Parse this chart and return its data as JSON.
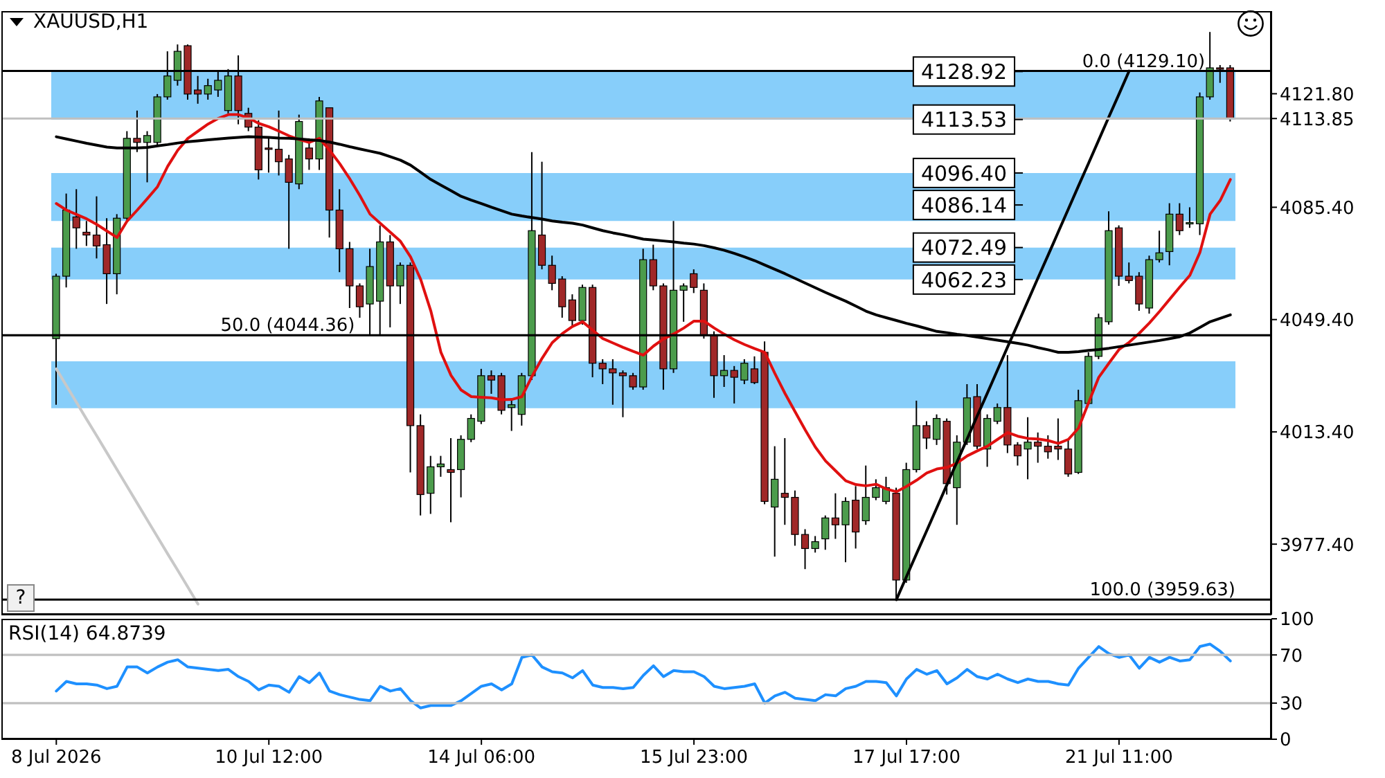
{
  "chart_data": [
    {
      "type": "candlestick",
      "title": "XAUUSD,H1",
      "categories": [
        null,
        null,
        null,
        null,
        null,
        null,
        null,
        null,
        null,
        null,
        null,
        null,
        null,
        null,
        null,
        null,
        null,
        null,
        null,
        null,
        null,
        null,
        null,
        null,
        null,
        null,
        null,
        null,
        null,
        null,
        null,
        null,
        null,
        null,
        null,
        null,
        null,
        null,
        null,
        null,
        null,
        null,
        null,
        null,
        null,
        null,
        null,
        null,
        null,
        null,
        null,
        null,
        null,
        null,
        null,
        null,
        null,
        null,
        null,
        null,
        null,
        null,
        null,
        null,
        null,
        null,
        null,
        null,
        null,
        null,
        null,
        null,
        null,
        null,
        null,
        null,
        null,
        null,
        null,
        null,
        null,
        null,
        null,
        null,
        null,
        null,
        null,
        null,
        null,
        null,
        null,
        null,
        null,
        null,
        null,
        null,
        null,
        null,
        null,
        null,
        null,
        null,
        null,
        null,
        null,
        null,
        null,
        null,
        null,
        null,
        null,
        null,
        null,
        null,
        null,
        null,
        null
      ],
      "ohlc": [
        [
          4043.3,
          4064.1,
          4022.1,
          4063.3
        ],
        [
          4063.3,
          4089.8,
          4059.7,
          4084.5
        ],
        [
          4082.3,
          4091.2,
          4072.1,
          4078.8
        ],
        [
          4077.4,
          4081.0,
          4073.0,
          4076.5
        ],
        [
          4076.5,
          4088.9,
          4069.0,
          4073.0
        ],
        [
          4073.4,
          4081.9,
          4054.4,
          4064.1
        ],
        [
          4064.1,
          4083.2,
          4057.5,
          4081.9
        ],
        [
          4081.9,
          4109.8,
          4081.0,
          4107.5
        ],
        [
          4107.5,
          4116.4,
          4103.1,
          4106.2
        ],
        [
          4106.2,
          4109.8,
          4093.4,
          4108.4
        ],
        [
          4106.2,
          4121.7,
          4105.3,
          4120.8
        ],
        [
          4120.8,
          4135.4,
          4119.9,
          4127.5
        ],
        [
          4126.1,
          4137.6,
          4124.4,
          4135.4
        ],
        [
          4137.2,
          4137.6,
          4119.9,
          4121.7
        ],
        [
          4123.0,
          4127.5,
          4118.6,
          4121.7
        ],
        [
          4121.7,
          4126.6,
          4119.9,
          4124.4
        ],
        [
          4123.0,
          4128.8,
          4120.8,
          4126.1
        ],
        [
          4116.4,
          4129.7,
          4115.5,
          4127.5
        ],
        [
          4127.5,
          4134.1,
          4112.0,
          4116.4
        ],
        [
          4115.5,
          4117.3,
          4109.8,
          4111.1
        ],
        [
          4111.1,
          4113.3,
          4094.3,
          4097.4
        ],
        [
          4104.4,
          4107.5,
          4096.5,
          4104.0
        ],
        [
          4104.0,
          4116.4,
          4095.6,
          4100.0
        ],
        [
          4100.9,
          4102.2,
          4072.1,
          4093.4
        ],
        [
          4092.9,
          4115.1,
          4091.2,
          4112.9
        ],
        [
          4104.4,
          4107.5,
          4097.4,
          4100.9
        ],
        [
          4100.9,
          4120.8,
          4097.4,
          4119.5
        ],
        [
          4117.3,
          4117.3,
          4075.7,
          4084.5
        ],
        [
          4084.5,
          4091.2,
          4064.6,
          4072.1
        ],
        [
          4072.1,
          4074.3,
          4053.1,
          4060.2
        ],
        [
          4060.2,
          4061.0,
          4050.0,
          4053.5
        ],
        [
          4054.4,
          4072.1,
          4044.2,
          4066.4
        ],
        [
          4055.3,
          4079.6,
          4044.2,
          4074.3
        ],
        [
          4074.3,
          4076.5,
          4046.9,
          4060.2
        ],
        [
          4060.2,
          4067.7,
          4054.4,
          4066.8
        ],
        [
          4066.8,
          4067.7,
          4000.4,
          4015.4
        ],
        [
          4015.4,
          4019.0,
          3986.6,
          3993.3
        ],
        [
          3993.7,
          4005.7,
          3987.1,
          4002.2
        ],
        [
          4002.2,
          4005.7,
          3999.0,
          4003.1
        ],
        [
          4001.3,
          4011.4,
          3984.4,
          4000.4
        ],
        [
          4001.3,
          4012.3,
          3992.4,
          4011.0
        ],
        [
          4011.0,
          4019.0,
          4010.1,
          4017.7
        ],
        [
          4016.8,
          4033.6,
          4015.9,
          4031.4
        ],
        [
          4031.4,
          4033.1,
          4025.6,
          4030.0
        ],
        [
          4031.4,
          4032.3,
          4019.0,
          4020.3
        ],
        [
          4021.2,
          4023.4,
          4013.7,
          4022.1
        ],
        [
          4019.0,
          4032.3,
          4015.4,
          4031.4
        ],
        [
          4031.4,
          4103.1,
          4030.0,
          4077.9
        ],
        [
          4076.5,
          4100.0,
          4065.5,
          4066.8
        ],
        [
          4066.8,
          4069.9,
          4058.8,
          4061.0
        ],
        [
          4062.4,
          4063.3,
          4050.0,
          4053.5
        ],
        [
          4055.7,
          4057.5,
          4046.9,
          4049.1
        ],
        [
          4049.1,
          4060.6,
          4047.8,
          4059.7
        ],
        [
          4059.7,
          4060.6,
          4030.9,
          4035.4
        ],
        [
          4035.4,
          4036.7,
          4028.7,
          4033.6
        ],
        [
          4033.6,
          4036.7,
          4022.1,
          4032.3
        ],
        [
          4032.3,
          4033.1,
          4018.1,
          4031.4
        ],
        [
          4031.4,
          4032.3,
          4026.9,
          4027.8
        ],
        [
          4027.8,
          4072.1,
          4026.9,
          4068.6
        ],
        [
          4068.6,
          4073.4,
          4058.8,
          4060.2
        ],
        [
          4060.2,
          4061.0,
          4026.9,
          4033.6
        ],
        [
          4033.6,
          4081.0,
          4032.3,
          4058.8
        ],
        [
          4058.8,
          4061.0,
          4048.7,
          4060.2
        ],
        [
          4064.1,
          4065.5,
          4057.9,
          4059.7
        ],
        [
          4058.8,
          4061.0,
          4043.3,
          4044.2
        ],
        [
          4044.2,
          4045.6,
          4024.3,
          4031.4
        ],
        [
          4031.4,
          4038.0,
          4027.8,
          4033.1
        ],
        [
          4033.1,
          4034.5,
          4022.5,
          4030.9
        ],
        [
          4030.0,
          4036.7,
          4028.7,
          4035.4
        ],
        [
          4033.6,
          4037.6,
          4028.7,
          4029.2
        ],
        [
          4038.9,
          4042.4,
          3990.2,
          3991.1
        ],
        [
          3989.3,
          4008.8,
          3973.4,
          3998.2
        ],
        [
          3993.7,
          4011.4,
          3983.6,
          3992.4
        ],
        [
          3992.4,
          3994.6,
          3976.9,
          3980.5
        ],
        [
          3980.5,
          3982.2,
          3969.4,
          3976.0
        ],
        [
          3976.0,
          3980.0,
          3974.7,
          3978.2
        ],
        [
          3979.1,
          3986.6,
          3975.6,
          3985.8
        ],
        [
          3985.8,
          3993.7,
          3979.1,
          3983.6
        ],
        [
          3983.6,
          3992.4,
          3971.6,
          3991.1
        ],
        [
          3991.5,
          3996.0,
          3976.0,
          3981.3
        ],
        [
          3984.9,
          4002.6,
          3983.6,
          3992.4
        ],
        [
          3992.4,
          3998.2,
          3991.5,
          3995.5
        ],
        [
          3991.1,
          3999.0,
          3990.2,
          3995.5
        ],
        [
          3993.7,
          3995.5,
          3959.63,
          3965.9
        ],
        [
          3965.9,
          4003.5,
          3965.0,
          4001.3
        ],
        [
          4001.3,
          4023.4,
          4000.4,
          4015.4
        ],
        [
          4015.4,
          4016.8,
          4007.9,
          4011.4
        ],
        [
          4011.0,
          4019.0,
          4009.2,
          4017.7
        ],
        [
          4016.8,
          4017.7,
          3993.3,
          3996.8
        ],
        [
          3995.5,
          4012.3,
          3983.6,
          4010.1
        ],
        [
          4010.1,
          4028.7,
          4009.2,
          4024.3
        ],
        [
          4024.7,
          4028.7,
          4007.9,
          4008.8
        ],
        [
          4007.9,
          4019.0,
          4002.2,
          4017.7
        ],
        [
          4016.8,
          4022.5,
          4015.9,
          4021.2
        ],
        [
          4021.2,
          4038.0,
          4006.6,
          4009.2
        ],
        [
          4009.2,
          4010.1,
          4002.6,
          4005.7
        ],
        [
          4007.9,
          4018.1,
          3998.2,
          4010.1
        ],
        [
          4010.1,
          4013.2,
          4003.5,
          4008.8
        ],
        [
          4008.8,
          4012.3,
          4004.8,
          4007.0
        ],
        [
          4008.8,
          4017.7,
          4004.4,
          4007.9
        ],
        [
          4007.9,
          4011.0,
          3999.0,
          3999.9
        ],
        [
          4000.4,
          4026.9,
          3999.9,
          4023.4
        ],
        [
          4022.5,
          4038.9,
          4022.1,
          4037.6
        ],
        [
          4037.6,
          4051.3,
          4036.7,
          4050.0
        ],
        [
          4048.7,
          4084.1,
          4047.8,
          4077.9
        ],
        [
          4078.8,
          4079.6,
          4060.2,
          4063.3
        ],
        [
          4063.3,
          4067.7,
          4061.0,
          4061.9
        ],
        [
          4063.3,
          4064.6,
          4052.2,
          4054.4
        ],
        [
          4053.1,
          4069.9,
          4051.3,
          4068.6
        ],
        [
          4068.6,
          4077.9,
          4067.7,
          4070.8
        ],
        [
          4071.2,
          4086.7,
          4066.8,
          4083.2
        ],
        [
          4083.2,
          4086.7,
          4076.5,
          4077.9
        ],
        [
          4080.1,
          4085.4,
          4078.8,
          4080.5
        ],
        [
          4080.1,
          4122.2,
          4076.5,
          4120.8
        ],
        [
          4120.8,
          4141.6,
          4119.9,
          4130.1
        ],
        [
          4130.1,
          4131.0,
          4125.3,
          4129.7
        ],
        [
          4130.1,
          4131.0,
          4112.9,
          4113.85
        ]
      ],
      "colors": [
        "#4c9c4c",
        "#4c9c4c",
        "#a02828",
        "#a02828",
        "#a02828",
        "#a02828",
        "#4c9c4c",
        "#4c9c4c",
        "#a02828",
        "#4c9c4c",
        "#4c9c4c",
        "#4c9c4c",
        "#4c9c4c",
        "#a02828",
        "#a02828",
        "#4c9c4c",
        "#4c9c4c",
        "#4c9c4c",
        "#a02828",
        "#a02828",
        "#a02828",
        "#a02828",
        "#a02828",
        "#a02828",
        "#4c9c4c",
        "#a02828",
        "#4c9c4c",
        "#a02828",
        "#a02828",
        "#a02828",
        "#a02828",
        "#4c9c4c",
        "#4c9c4c",
        "#a02828",
        "#4c9c4c",
        "#a02828",
        "#a02828",
        "#4c9c4c",
        "#4c9c4c",
        "#a02828",
        "#4c9c4c",
        "#4c9c4c",
        "#4c9c4c",
        "#a02828",
        "#a02828",
        "#4c9c4c",
        "#4c9c4c",
        "#4c9c4c",
        "#a02828",
        "#a02828",
        "#a02828",
        "#a02828",
        "#4c9c4c",
        "#a02828",
        "#a02828",
        "#a02828",
        "#a02828",
        "#a02828",
        "#4c9c4c",
        "#a02828",
        "#a02828",
        "#4c9c4c",
        "#4c9c4c",
        "#a02828",
        "#a02828",
        "#a02828",
        "#4c9c4c",
        "#a02828",
        "#4c9c4c",
        "#a02828",
        "#a02828",
        "#4c9c4c",
        "#a02828",
        "#a02828",
        "#a02828",
        "#4c9c4c",
        "#4c9c4c",
        "#a02828",
        "#4c9c4c",
        "#a02828",
        "#4c9c4c",
        "#4c9c4c",
        "#4c9c4c",
        "#a02828",
        "#4c9c4c",
        "#4c9c4c",
        "#a02828",
        "#4c9c4c",
        "#a02828",
        "#4c9c4c",
        "#4c9c4c",
        "#a02828",
        "#4c9c4c",
        "#4c9c4c",
        "#a02828",
        "#a02828",
        "#4c9c4c",
        "#a02828",
        "#a02828",
        "#a02828",
        "#a02828",
        "#4c9c4c",
        "#4c9c4c",
        "#4c9c4c",
        "#4c9c4c",
        "#a02828",
        "#a02828",
        "#a02828",
        "#4c9c4c",
        "#4c9c4c",
        "#4c9c4c",
        "#a02828",
        "#4c9c4c",
        "#4c9c4c",
        "#4c9c4c",
        "#a02828",
        "#a02828"
      ],
      "series": [
        {
          "type": "line",
          "color": "#e01010",
          "values": [
            4086.6,
            4084.5,
            4083.1,
            4081.7,
            4079.9,
            4077.8,
            4075.7,
            4081.0,
            4084.5,
            4088.2,
            4092.0,
            4098.5,
            4103.7,
            4107.5,
            4109.8,
            4112.1,
            4113.9,
            4115.1,
            4115.1,
            4114.0,
            4112.3,
            4111.2,
            4109.8,
            4108.3,
            4107.1,
            4106.2,
            4107.5,
            4103.7,
            4099.4,
            4094.5,
            4089.1,
            4083.2,
            4080.3,
            4077.4,
            4074.5,
            4069.5,
            4062.3,
            4052.2,
            4038.9,
            4031.5,
            4026.8,
            4024.7,
            4024.5,
            4024.3,
            4023.7,
            4023.8,
            4024.7,
            4031.2,
            4037.0,
            4042.0,
            4044.9,
            4047.2,
            4048.7,
            4046.0,
            4043.3,
            4041.9,
            4040.5,
            4039.2,
            4038.0,
            4040.9,
            4043.2,
            4044.8,
            4046.7,
            4048.9,
            4048.9,
            4046.7,
            4044.7,
            4042.9,
            4041.4,
            4040.1,
            4038.9,
            4032.1,
            4025.7,
            4019.8,
            4014.0,
            4008.5,
            4004.1,
            4000.9,
            3997.7,
            3996.5,
            3996.1,
            3996.6,
            3995.1,
            3994.2,
            3995.9,
            3997.9,
            4000.2,
            4001.5,
            4002.0,
            4003.4,
            4005.7,
            4007.3,
            4008.8,
            4011.0,
            4013.2,
            4012.0,
            4011.3,
            4011.1,
            4010.6,
            4009.7,
            4011.0,
            4014.6,
            4022.8,
            4030.9,
            4035.4,
            4039.8,
            4042.1,
            4045.0,
            4048.3,
            4052.0,
            4055.9,
            4059.8,
            4063.6,
            4071.0,
            4083.2,
            4087.6,
            4094.3
          ]
        },
        {
          "type": "line",
          "color": "#000000",
          "values": [
            4108.0,
            4107.3,
            4106.6,
            4105.9,
            4105.3,
            4104.7,
            4104.4,
            4104.4,
            4104.4,
            4104.6,
            4105.1,
            4105.5,
            4106.0,
            4106.4,
            4106.7,
            4107.0,
            4107.3,
            4107.6,
            4107.8,
            4108.0,
            4107.9,
            4107.8,
            4107.6,
            4107.5,
            4107.3,
            4107.0,
            4106.8,
            4106.3,
            4105.6,
            4104.8,
            4104.1,
            4103.4,
            4102.7,
            4101.6,
            4100.5,
            4098.9,
            4096.6,
            4094.3,
            4092.5,
            4090.7,
            4088.9,
            4087.7,
            4086.6,
            4085.4,
            4084.3,
            4083.2,
            4082.6,
            4082.1,
            4081.6,
            4081.0,
            4080.6,
            4080.3,
            4079.7,
            4078.8,
            4077.9,
            4077.2,
            4076.6,
            4075.9,
            4075.2,
            4074.9,
            4074.6,
            4074.3,
            4073.9,
            4073.6,
            4073.1,
            4072.4,
            4071.6,
            4070.6,
            4069.5,
            4068.3,
            4066.9,
            4065.5,
            4064.1,
            4062.6,
            4061.1,
            4059.6,
            4058.1,
            4056.7,
            4055.3,
            4053.7,
            4052.1,
            4050.9,
            4050.0,
            4049.1,
            4048.2,
            4047.4,
            4046.5,
            4045.6,
            4045.2,
            4044.7,
            4044.3,
            4043.8,
            4043.3,
            4042.8,
            4042.3,
            4041.8,
            4041.2,
            4040.4,
            4039.7,
            4038.9,
            4038.9,
            4039.1,
            4039.5,
            4039.8,
            4040.2,
            4040.7,
            4041.2,
            4041.7,
            4042.2,
            4042.7,
            4043.3,
            4043.9,
            4045.1,
            4046.9,
            4048.7,
            4049.8,
            4050.9
          ]
        },
        {
          "type": "line",
          "color": "#000000",
          "values": [
            null,
            null,
            null,
            null,
            null,
            null,
            null,
            null,
            null,
            null,
            null,
            null,
            null,
            null,
            null,
            null,
            null,
            null,
            null,
            null,
            null,
            null,
            null,
            null,
            null,
            null,
            null,
            null,
            null,
            null,
            null,
            null,
            null,
            null,
            null,
            null,
            null,
            null,
            null,
            null,
            null,
            null,
            null,
            null,
            null,
            null,
            null,
            null,
            null,
            null,
            null,
            null,
            null,
            null,
            null,
            null,
            null,
            null,
            null,
            null,
            null,
            null,
            null,
            null,
            null,
            null,
            null,
            null,
            null,
            null,
            null,
            null,
            null,
            null,
            null,
            null,
            null,
            null,
            null,
            null,
            null,
            null,
            null,
            3959.6,
            3967.0,
            3974.4,
            3981.7,
            3989.1,
            3996.5,
            4003.8,
            4011.2,
            4018.6,
            4025.9,
            4033.3,
            4040.7,
            4048.0,
            4055.4,
            4062.8,
            4070.1,
            4077.5,
            4084.9,
            4092.3,
            4099.6,
            4107.0,
            4114.4,
            4121.7,
            4129.1,
            null,
            null,
            null,
            null,
            null,
            null,
            null,
            null,
            null,
            null
          ]
        },
        {
          "type": "line",
          "color": "#c8c8c8",
          "values": [
            4033.6,
            4028.2,
            4022.8,
            4017.4,
            4012.1,
            4006.7,
            4001.3,
            3995.9,
            3990.5,
            3985.1,
            3979.7,
            3974.3,
            3969.0,
            3963.6,
            3958.2,
            null,
            null,
            null,
            null,
            null,
            null,
            null,
            null,
            null,
            null,
            null,
            null,
            null,
            null,
            null,
            null,
            null,
            null,
            null,
            null,
            null,
            null,
            null,
            null,
            null,
            null,
            null,
            null,
            null,
            null,
            null,
            null,
            null,
            null,
            null,
            null,
            null,
            null,
            null,
            null,
            null,
            null,
            null,
            null,
            null,
            null,
            null,
            null,
            null,
            null,
            null,
            null,
            null,
            null,
            null,
            null,
            null,
            null,
            null,
            null,
            null,
            null,
            null,
            null,
            null,
            null,
            null,
            null,
            null,
            null,
            null,
            null,
            null,
            null,
            null,
            null,
            null,
            null,
            null,
            null,
            null,
            null,
            null,
            null,
            null,
            null,
            null,
            null,
            null,
            null,
            null,
            null,
            null,
            null,
            null,
            null,
            null,
            null,
            null,
            null,
            null,
            null
          ]
        }
      ],
      "ylim": [
        3954.8,
        4148.3
      ],
      "yticks": [
        {
          "value": 3977.4,
          "label": "3977.40"
        },
        {
          "value": 4013.4,
          "label": "4013.40"
        },
        {
          "value": 4049.4,
          "label": "4049.40"
        },
        {
          "value": 4085.4,
          "label": "4085.40"
        },
        {
          "value": 4113.85,
          "label": "4113.85"
        },
        {
          "value": 4121.8,
          "label": "4121.80"
        }
      ],
      "tick_labels": "y",
      "bands": [
        {
          "axis": "y",
          "from": 4113.53,
          "to": 4128.92,
          "color": "#87cefa"
        },
        {
          "axis": "y",
          "from": 4086.14,
          "to": 4096.4,
          "color": "#87cefa"
        },
        {
          "axis": "y",
          "from": 4062.23,
          "to": 4072.49,
          "color": "#87cefa"
        },
        {
          "axis": "y",
          "from": 4081.0,
          "to": 4091.5,
          "color": "#87cefa"
        },
        {
          "axis": "y",
          "from": 4021.0,
          "to": 4036.0,
          "color": "#87cefa"
        }
      ],
      "ref_lines": [
        {
          "axis": "y",
          "value": 4113.85,
          "color": "#c0c0c0"
        },
        {
          "axis": "y",
          "value": 4129.1,
          "label": "0.0 (4129.10)",
          "color": "#000000"
        },
        {
          "axis": "y",
          "value": 4044.36,
          "label": "50.0 (4044.36)",
          "color": "#000000"
        },
        {
          "axis": "y",
          "value": 3959.63,
          "label": "100.0 (3959.63)",
          "color": "#000000"
        }
      ],
      "annotations": [
        {
          "text": "4128.92",
          "y": 4128.92
        },
        {
          "text": "4113.53",
          "y": 4113.53
        },
        {
          "text": "4096.40",
          "y": 4096.4
        },
        {
          "text": "4086.14",
          "y": 4086.14
        },
        {
          "text": "4072.49",
          "y": 4072.49
        },
        {
          "text": "4062.23",
          "y": 4062.23
        },
        "?"
      ]
    },
    {
      "type": "line",
      "title": "RSI(14) 64.8739",
      "categories": [
        "8 Jul 2026",
        null,
        null,
        null,
        null,
        null,
        null,
        null,
        null,
        null,
        null,
        null,
        null,
        null,
        null,
        null,
        null,
        null,
        null,
        null,
        null,
        "10 Jul 12:00",
        null,
        null,
        null,
        null,
        null,
        null,
        null,
        null,
        null,
        null,
        null,
        null,
        null,
        null,
        null,
        null,
        null,
        null,
        null,
        null,
        "14 Jul 06:00",
        null,
        null,
        null,
        null,
        null,
        null,
        null,
        null,
        null,
        null,
        null,
        null,
        null,
        null,
        null,
        null,
        null,
        null,
        null,
        null,
        "15 Jul 23:00",
        null,
        null,
        null,
        null,
        null,
        null,
        null,
        null,
        null,
        null,
        null,
        null,
        null,
        null,
        null,
        null,
        null,
        null,
        null,
        null,
        "17 Jul 17:00",
        null,
        null,
        null,
        null,
        null,
        null,
        null,
        null,
        null,
        null,
        null,
        null,
        null,
        null,
        null,
        null,
        null,
        null,
        null,
        null,
        "21 Jul 11:00",
        null,
        null,
        null,
        null,
        null,
        null,
        null,
        null,
        null,
        null,
        null
      ],
      "series": [
        {
          "color": "#1e90ff",
          "values": [
            40,
            48,
            46,
            46,
            45,
            42,
            44,
            60,
            60,
            55,
            60,
            64,
            66,
            60,
            59,
            58,
            57,
            58,
            52,
            48,
            41,
            45,
            44,
            39,
            52,
            47,
            55,
            40,
            37,
            35,
            33,
            32,
            44,
            40,
            42,
            32,
            26,
            28,
            28,
            28,
            32,
            38,
            44,
            46,
            41,
            46,
            68,
            70,
            60,
            56,
            55,
            51,
            57,
            45,
            43,
            43,
            42,
            43,
            53,
            61,
            52,
            57,
            56,
            56,
            52,
            44,
            42,
            43,
            44,
            46,
            30,
            36,
            39,
            34,
            33,
            32,
            37,
            36,
            42,
            44,
            48,
            48,
            47,
            36,
            50,
            58,
            54,
            57,
            46,
            51,
            58,
            52,
            50,
            54,
            50,
            47,
            50,
            48,
            48,
            46,
            45,
            59,
            68,
            77,
            71,
            68,
            70,
            59,
            68,
            64,
            68,
            65,
            66,
            77,
            79,
            73,
            65
          ]
        }
      ],
      "ylim": [
        0,
        100
      ],
      "yticks": [
        0,
        30,
        70,
        100
      ],
      "ref_lines": [
        {
          "axis": "y",
          "value": 70,
          "color": "#c0c0c0"
        },
        {
          "axis": "y",
          "value": 30,
          "color": "#c0c0c0"
        }
      ]
    }
  ]
}
